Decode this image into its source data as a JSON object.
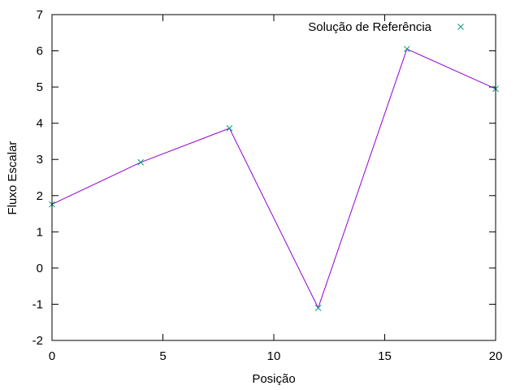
{
  "chart_data": {
    "type": "line",
    "title": "",
    "xlabel": "Posição",
    "ylabel": "Fluxo Escalar",
    "xlim": [
      0,
      20
    ],
    "ylim": [
      -2,
      7
    ],
    "xticks": [
      0,
      5,
      10,
      15,
      20
    ],
    "xtick_labels": [
      "0",
      "5",
      "10",
      "15",
      "20"
    ],
    "yticks": [
      -2,
      -1,
      0,
      1,
      2,
      3,
      4,
      5,
      6,
      7
    ],
    "ytick_labels": [
      "-2",
      "-1",
      "0",
      "1",
      "2",
      "3",
      "4",
      "5",
      "6",
      "7"
    ],
    "grid": false,
    "legend_position": "top-right",
    "series": [
      {
        "name": "",
        "kind": "line",
        "color": "#9400d3",
        "x": [
          0,
          4,
          8,
          12,
          16,
          20
        ],
        "y": [
          1.76,
          2.92,
          3.86,
          -1.1,
          6.05,
          4.95
        ]
      },
      {
        "name": "Solução de Referência",
        "kind": "points",
        "marker": "x",
        "color": "#009e73",
        "x": [
          0,
          4,
          8,
          12,
          16,
          20
        ],
        "y": [
          1.76,
          2.92,
          3.86,
          -1.1,
          6.05,
          4.95
        ]
      }
    ]
  }
}
